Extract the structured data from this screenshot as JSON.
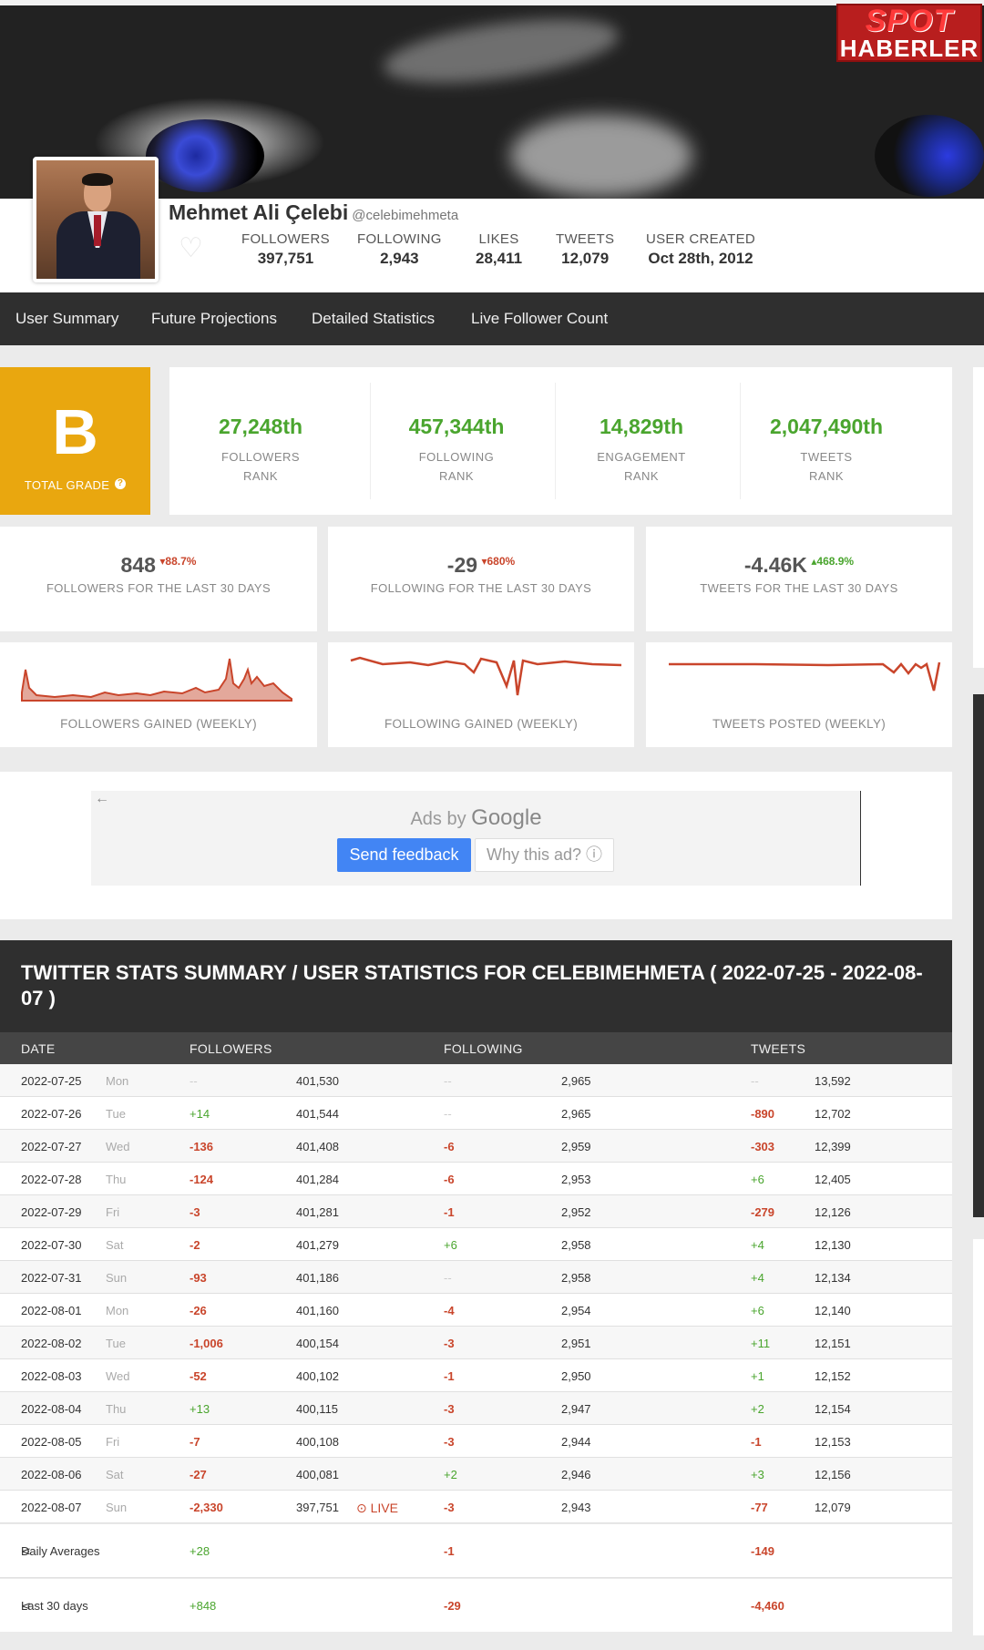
{
  "watermark": {
    "line1": "SPOT",
    "line2": "HABERLER"
  },
  "profile": {
    "name": "Mehmet Ali Çelebi",
    "handle": "@celebimehmeta",
    "stats": [
      {
        "label": "FOLLOWERS",
        "value": "397,751"
      },
      {
        "label": "FOLLOWING",
        "value": "2,943"
      },
      {
        "label": "LIKES",
        "value": "28,411"
      },
      {
        "label": "TWEETS",
        "value": "12,079"
      },
      {
        "label": "USER CREATED",
        "value": "Oct 28th, 2012"
      }
    ]
  },
  "nav": [
    "User Summary",
    "Future Projections",
    "Detailed Statistics",
    "Live Follower Count"
  ],
  "grade": {
    "letter": "B",
    "label": "TOTAL GRADE"
  },
  "ranks": [
    {
      "value": "27,248th",
      "l1": "FOLLOWERS",
      "l2": "RANK"
    },
    {
      "value": "457,344th",
      "l1": "FOLLOWING",
      "l2": "RANK"
    },
    {
      "value": "14,829th",
      "l1": "ENGAGEMENT",
      "l2": "RANK"
    },
    {
      "value": "2,047,490th",
      "l1": "TWEETS",
      "l2": "RANK"
    }
  ],
  "thirty_day": [
    {
      "value": "848",
      "pct": "▾88.7%",
      "desc": "FOLLOWERS FOR THE LAST 30 DAYS"
    },
    {
      "value": "-29",
      "pct": "▾680%",
      "desc": "FOLLOWING FOR THE LAST 30 DAYS"
    },
    {
      "value": "-4.46K",
      "pct": "▴468.9%",
      "desc": "TWEETS FOR THE LAST 30 DAYS"
    }
  ],
  "sparks": [
    "FOLLOWERS GAINED (WEEKLY)",
    "FOLLOWING GAINED (WEEKLY)",
    "TWEETS POSTED (WEEKLY)"
  ],
  "ad": {
    "by": "Ads by",
    "brand": "Google",
    "feedback": "Send feedback",
    "why": "Why this ad? ⓘ",
    "back": "←"
  },
  "table": {
    "title": "TWITTER STATS SUMMARY / USER STATISTICS FOR CELEBIMEHMETA ( 2022-07-25 - 2022-08-07 )",
    "headers": [
      "DATE",
      "FOLLOWERS",
      "FOLLOWING",
      "TWEETS"
    ],
    "rows": [
      {
        "date": "2022-07-25",
        "day": "Mon",
        "fd": "--",
        "fv": "401,530",
        "gd": "--",
        "gv": "2,965",
        "td": "--",
        "tv": "13,592"
      },
      {
        "date": "2022-07-26",
        "day": "Tue",
        "fd": "+14",
        "fv": "401,544",
        "gd": "--",
        "gv": "2,965",
        "td": "-890",
        "tv": "12,702"
      },
      {
        "date": "2022-07-27",
        "day": "Wed",
        "fd": "-136",
        "fv": "401,408",
        "gd": "-6",
        "gv": "2,959",
        "td": "-303",
        "tv": "12,399"
      },
      {
        "date": "2022-07-28",
        "day": "Thu",
        "fd": "-124",
        "fv": "401,284",
        "gd": "-6",
        "gv": "2,953",
        "td": "+6",
        "tv": "12,405"
      },
      {
        "date": "2022-07-29",
        "day": "Fri",
        "fd": "-3",
        "fv": "401,281",
        "gd": "-1",
        "gv": "2,952",
        "td": "-279",
        "tv": "12,126"
      },
      {
        "date": "2022-07-30",
        "day": "Sat",
        "fd": "-2",
        "fv": "401,279",
        "gd": "+6",
        "gv": "2,958",
        "td": "+4",
        "tv": "12,130"
      },
      {
        "date": "2022-07-31",
        "day": "Sun",
        "fd": "-93",
        "fv": "401,186",
        "gd": "--",
        "gv": "2,958",
        "td": "+4",
        "tv": "12,134"
      },
      {
        "date": "2022-08-01",
        "day": "Mon",
        "fd": "-26",
        "fv": "401,160",
        "gd": "-4",
        "gv": "2,954",
        "td": "+6",
        "tv": "12,140"
      },
      {
        "date": "2022-08-02",
        "day": "Tue",
        "fd": "-1,006",
        "fv": "400,154",
        "gd": "-3",
        "gv": "2,951",
        "td": "+11",
        "tv": "12,151"
      },
      {
        "date": "2022-08-03",
        "day": "Wed",
        "fd": "-52",
        "fv": "400,102",
        "gd": "-1",
        "gv": "2,950",
        "td": "+1",
        "tv": "12,152"
      },
      {
        "date": "2022-08-04",
        "day": "Thu",
        "fd": "+13",
        "fv": "400,115",
        "gd": "-3",
        "gv": "2,947",
        "td": "+2",
        "tv": "12,154"
      },
      {
        "date": "2022-08-05",
        "day": "Fri",
        "fd": "-7",
        "fv": "400,108",
        "gd": "-3",
        "gv": "2,944",
        "td": "-1",
        "tv": "12,153"
      },
      {
        "date": "2022-08-06",
        "day": "Sat",
        "fd": "-27",
        "fv": "400,081",
        "gd": "+2",
        "gv": "2,946",
        "td": "+3",
        "tv": "12,156"
      },
      {
        "date": "2022-08-07",
        "day": "Sun",
        "fd": "-2,330",
        "fv": "397,751",
        "gd": "-3",
        "gv": "2,943",
        "td": "-77",
        "tv": "12,079",
        "live": "⊙ LIVE"
      }
    ],
    "daily_avg": {
      "label": "Daily Averages",
      "f": "+28",
      "g": "-1",
      "t": "-149"
    },
    "last30": {
      "label": "Last 30 days",
      "f": "+848",
      "g": "-29",
      "t": "-4,460"
    }
  },
  "colors": {
    "accent_green": "#4aa52e",
    "accent_red": "#c9452b",
    "grade_bg": "#e9a70f",
    "dark_bar": "#2f2f2f"
  }
}
